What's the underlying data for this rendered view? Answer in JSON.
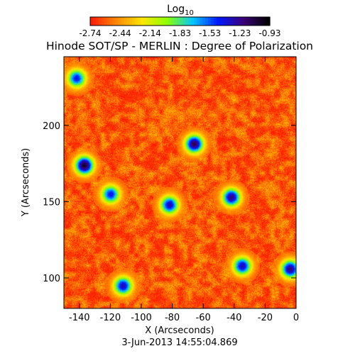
{
  "chart_data": {
    "type": "heatmap",
    "title": "Hinode SOT/SP - MERLIN : Degree of Polarization",
    "subtitle": "3-Jun-2013 14:55:04.869",
    "xlabel": "X (Arcseconds)",
    "ylabel": "Y (Arcseconds)",
    "xlim": [
      -150,
      0
    ],
    "ylim": [
      80,
      245
    ],
    "xticks": [
      -140,
      -120,
      -100,
      -80,
      -60,
      -40,
      -20,
      0
    ],
    "yticks": [
      100,
      150,
      200
    ],
    "colorbar": {
      "title": "Log",
      "title_sub": "10",
      "range": [
        -2.74,
        -0.93
      ],
      "ticks": [
        "-2.74",
        "-2.44",
        "-2.14",
        "-1.83",
        "-1.53",
        "-1.23",
        "-0.93"
      ],
      "colors": [
        "#ff1e00",
        "#ff8a00",
        "#ffe600",
        "#8cff00",
        "#00c8ff",
        "#0018ff",
        "#3a007a",
        "#000000"
      ]
    },
    "background_level": -2.6,
    "features": [
      {
        "label": "strong",
        "x": -137,
        "y": 174,
        "value": -1.0
      },
      {
        "label": "strong",
        "x": -66,
        "y": 188,
        "value": -1.1
      },
      {
        "label": "strong",
        "x": -42,
        "y": 153,
        "value": -1.2
      },
      {
        "label": "strong",
        "x": -4,
        "y": 106,
        "value": -1.2
      },
      {
        "label": "strong",
        "x": -82,
        "y": 148,
        "value": -1.3
      },
      {
        "label": "strong",
        "x": -112,
        "y": 95,
        "value": -1.3
      },
      {
        "label": "strong",
        "x": -35,
        "y": 108,
        "value": -1.3
      },
      {
        "label": "strong",
        "x": -142,
        "y": 231,
        "value": -1.4
      },
      {
        "label": "strong",
        "x": -120,
        "y": 155,
        "value": -1.4
      }
    ]
  }
}
